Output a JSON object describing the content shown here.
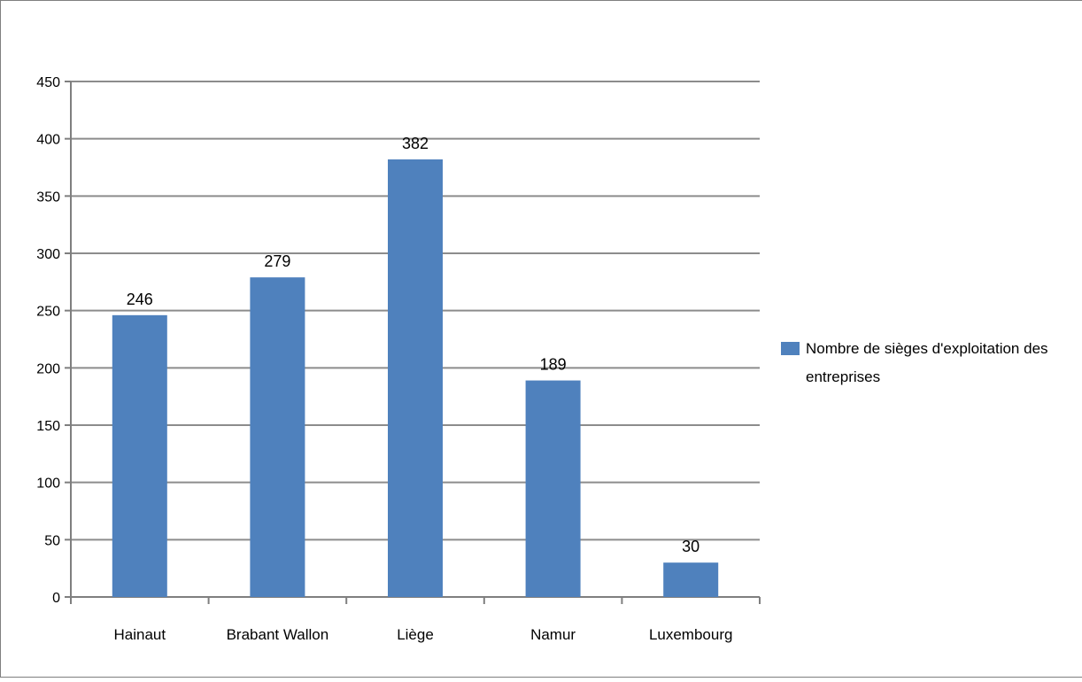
{
  "chart_data": {
    "type": "bar",
    "categories": [
      "Hainaut",
      "Brabant Wallon",
      "Liège",
      "Namur",
      "Luxembourg"
    ],
    "series": [
      {
        "name": "Nombre de sièges d'exploitation des entreprises",
        "values": [
          246,
          279,
          382,
          189,
          30
        ],
        "color": "#4f81bd"
      }
    ],
    "data_labels": [
      "246",
      "279",
      "382",
      "189",
      "30"
    ],
    "y_ticks": [
      "0",
      "50",
      "100",
      "150",
      "200",
      "250",
      "300",
      "350",
      "400",
      "450"
    ],
    "ylim": [
      0,
      450
    ],
    "grid": true,
    "legend_position": "right",
    "legend_lines": [
      "Nombre de sièges d'exploitation des",
      "entreprises"
    ],
    "title": "",
    "xlabel": "",
    "ylabel": ""
  },
  "colors": {
    "bar": "#4f81bd",
    "grid": "#8c8c8c",
    "axis": "#7f7f7f",
    "frame": "#7f7f7f"
  }
}
